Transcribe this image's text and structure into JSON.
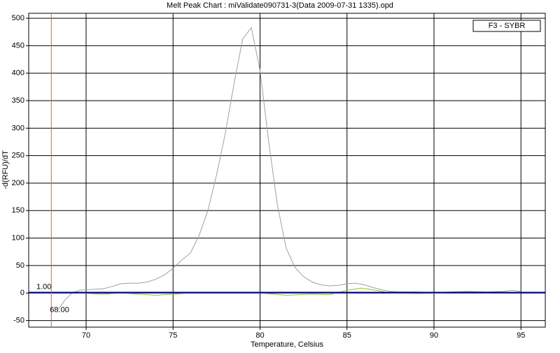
{
  "chart_data": {
    "type": "line",
    "title": "Melt Peak Chart : miValidate090731-3(Data 2009-07-31 1335).opd",
    "x_label": "Temperature, Celsius",
    "y_label": "-d(RFU)/dT",
    "xlim": [
      66.7,
      96.4
    ],
    "ylim": [
      -62,
      509
    ],
    "xticks": [
      70,
      75,
      80,
      85,
      90,
      95
    ],
    "yticks": [
      -50,
      0,
      50,
      100,
      150,
      200,
      250,
      300,
      350,
      400,
      450,
      500
    ],
    "grid": true,
    "legend_position": "top-right",
    "threshold": {
      "value": 1,
      "label": "1.00",
      "color": "#000080"
    },
    "marker_x": {
      "value": 68,
      "label": "68.00",
      "color": "#e8602c"
    },
    "series": [
      {
        "name": "F3 - SYBR",
        "color": "#a0a0a0",
        "x": [
          68.4,
          68.8,
          69.2,
          69.6,
          70,
          70.5,
          71,
          71.5,
          72,
          72.5,
          73,
          73.5,
          74,
          74.5,
          75,
          75.5,
          76,
          76.5,
          77,
          77.5,
          78,
          78.5,
          79,
          79.5,
          80,
          80.5,
          81,
          81.5,
          82,
          82.5,
          83,
          83.5,
          84,
          84.5,
          85,
          85.5,
          86,
          86.5,
          87,
          87.5,
          88,
          89,
          90,
          91,
          92,
          93,
          94,
          94.5,
          95
        ],
        "values": [
          -30,
          -12,
          0,
          5,
          6,
          7,
          8,
          12,
          17,
          18,
          18,
          20,
          25,
          33,
          45,
          60,
          73,
          105,
          150,
          215,
          290,
          380,
          462,
          483,
          405,
          275,
          160,
          82,
          47,
          30,
          20,
          15,
          13,
          14,
          17,
          18,
          15,
          10,
          6,
          3,
          2,
          2,
          1,
          2,
          3,
          2,
          3,
          5,
          3
        ]
      },
      {
        "color": "#90c020",
        "x": [
          69.5,
          71,
          72,
          74,
          75,
          76,
          80,
          81.5,
          83,
          84,
          85,
          85.8,
          86.5,
          87.5,
          89,
          91,
          94,
          95
        ],
        "values": [
          0,
          -2,
          0,
          -4,
          -2,
          0,
          0,
          -4,
          -2,
          -3,
          5,
          9,
          6,
          0,
          -1,
          0,
          0,
          2
        ]
      }
    ]
  }
}
